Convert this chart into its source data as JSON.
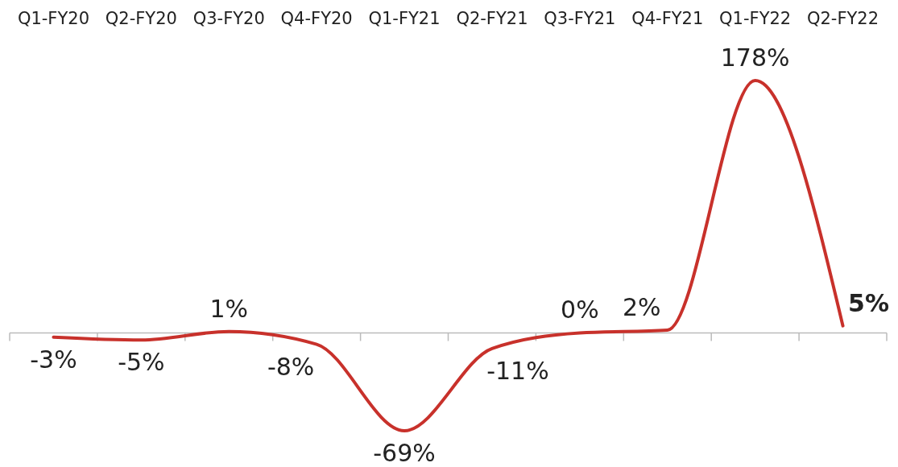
{
  "chart_data": {
    "type": "line",
    "categories": [
      "Q1-FY20",
      "Q2-FY20",
      "Q3-FY20",
      "Q4-FY20",
      "Q1-FY21",
      "Q2-FY21",
      "Q3-FY21",
      "Q4-FY21",
      "Q1-FY22",
      "Q2-FY22"
    ],
    "series": [
      {
        "color": "#c8312b",
        "values": [
          -3,
          -5,
          1,
          -8,
          -69,
          -11,
          0,
          2,
          178,
          5
        ],
        "value_labels": [
          "-3%",
          "-5%",
          "1%",
          "-8%",
          "-69%",
          "-11%",
          "0%",
          "2%",
          "178%",
          "5%"
        ]
      }
    ],
    "marker": "none"
  }
}
